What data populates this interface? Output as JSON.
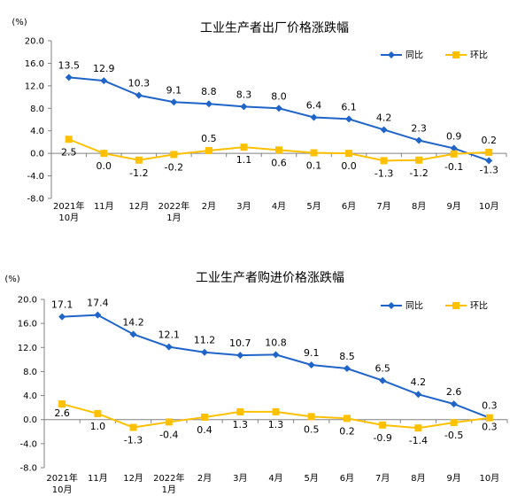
{
  "chart_data": [
    {
      "type": "line",
      "title": "工业生产者出厂价格涨跌幅",
      "ylabel": "(%)",
      "ylim": [
        -8.0,
        20.0
      ],
      "yticks": [
        "20.0",
        "16.0",
        "12.0",
        "8.0",
        "4.0",
        "0.0",
        "-4.0",
        "-8.0"
      ],
      "categories": [
        [
          "2021年",
          "10月"
        ],
        [
          "11月"
        ],
        [
          "12月"
        ],
        [
          "2022年",
          "1月"
        ],
        [
          "2月"
        ],
        [
          "3月"
        ],
        [
          "4月"
        ],
        [
          "5月"
        ],
        [
          "6月"
        ],
        [
          "7月"
        ],
        [
          "8月"
        ],
        [
          "9月"
        ],
        [
          "10月"
        ]
      ],
      "legend_position": "top-right",
      "grid": false,
      "series": [
        {
          "name": "同比",
          "color": "#1f64c8",
          "marker": "diamond",
          "values": [
            13.5,
            12.9,
            10.3,
            9.1,
            8.8,
            8.3,
            8.0,
            6.4,
            6.1,
            4.2,
            2.3,
            0.9,
            -1.3
          ],
          "labels": [
            "13.5",
            "12.9",
            "10.3",
            "9.1",
            "8.8",
            "8.3",
            "8.0",
            "6.4",
            "6.1",
            "4.2",
            "2.3",
            "0.9",
            "-1.3"
          ]
        },
        {
          "name": "环比",
          "color": "#ffc000",
          "marker": "square",
          "values": [
            2.5,
            0.0,
            -1.2,
            -0.2,
            0.5,
            1.1,
            0.6,
            0.1,
            0.0,
            -1.3,
            -1.2,
            -0.1,
            0.2
          ],
          "labels": [
            "2.5",
            "0.0",
            "-1.2",
            "-0.2",
            "0.5",
            "1.1",
            "0.6",
            "0.1",
            "0.0",
            "-1.3",
            "-1.2",
            "-0.1",
            "0.2"
          ]
        }
      ]
    },
    {
      "type": "line",
      "title": "工业生产者购进价格涨跌幅",
      "ylabel": "(%)",
      "ylim": [
        -8.0,
        20.0
      ],
      "yticks": [
        "20.0",
        "16.0",
        "12.0",
        "8.0",
        "4.0",
        "0.0",
        "-4.0",
        "-8.0"
      ],
      "categories": [
        [
          "2021年",
          "10月"
        ],
        [
          "11月"
        ],
        [
          "12月"
        ],
        [
          "2022年",
          "1月"
        ],
        [
          "2月"
        ],
        [
          "3月"
        ],
        [
          "4月"
        ],
        [
          "5月"
        ],
        [
          "6月"
        ],
        [
          "7月"
        ],
        [
          "8月"
        ],
        [
          "9月"
        ],
        [
          "10月"
        ]
      ],
      "legend_position": "top-right",
      "grid": false,
      "series": [
        {
          "name": "同比",
          "color": "#1f64c8",
          "marker": "diamond",
          "values": [
            17.1,
            17.4,
            14.2,
            12.1,
            11.2,
            10.7,
            10.8,
            9.1,
            8.5,
            6.5,
            4.2,
            2.6,
            0.3
          ],
          "labels": [
            "17.1",
            "17.4",
            "14.2",
            "12.1",
            "11.2",
            "10.7",
            "10.8",
            "9.1",
            "8.5",
            "6.5",
            "4.2",
            "2.6",
            "0.3"
          ]
        },
        {
          "name": "环比",
          "color": "#ffc000",
          "marker": "square",
          "values": [
            2.6,
            1.0,
            -1.3,
            -0.4,
            0.4,
            1.3,
            1.3,
            0.5,
            0.2,
            -0.9,
            -1.4,
            -0.5,
            0.3
          ],
          "labels": [
            "2.6",
            "1.0",
            "-1.3",
            "-0.4",
            "0.4",
            "1.3",
            "1.3",
            "0.5",
            "0.2",
            "-0.9",
            "-1.4",
            "-0.5",
            "0.3"
          ]
        }
      ]
    }
  ]
}
